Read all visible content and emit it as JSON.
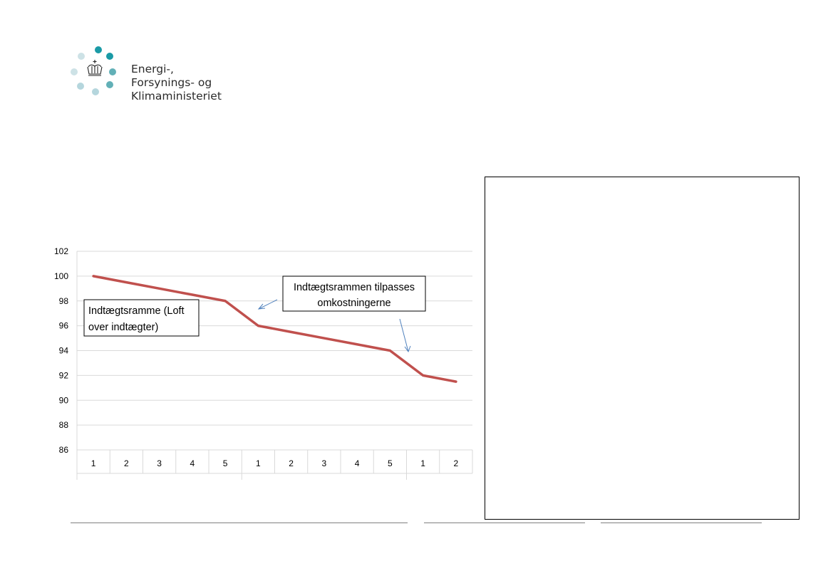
{
  "logo": {
    "lines": [
      "Energi-,",
      "Forsynings- og",
      "Klimaministeriet"
    ],
    "dot_colors": {
      "teal": "#1a9aa6",
      "mid": "#62b0b7",
      "light": "#b5d6dd",
      "pale": "#cde2e6"
    },
    "icon": "crown-icon"
  },
  "chart_data": {
    "type": "line",
    "title": "",
    "xlabel": "",
    "ylabel": "",
    "categories": [
      "1",
      "2",
      "3",
      "4",
      "5",
      "1",
      "2",
      "3",
      "4",
      "5",
      "1",
      "2"
    ],
    "series": [
      {
        "values": [
          100,
          99.5,
          99,
          98.5,
          98,
          96,
          95.5,
          95,
          94.5,
          94,
          92,
          91.5
        ],
        "color": "#c0504d"
      }
    ],
    "ylim": [
      86,
      102
    ],
    "yticks": [
      "86",
      "88",
      "90",
      "92",
      "94",
      "96",
      "98",
      "100",
      "102"
    ],
    "grid": "horizontal",
    "annotations": [
      {
        "text_lines": [
          "Indtægtsramme (Loft",
          "over indtægter)"
        ]
      },
      {
        "text_lines": [
          "Indtægtsrammen tilpasses",
          "omkostningerne"
        ]
      }
    ]
  }
}
